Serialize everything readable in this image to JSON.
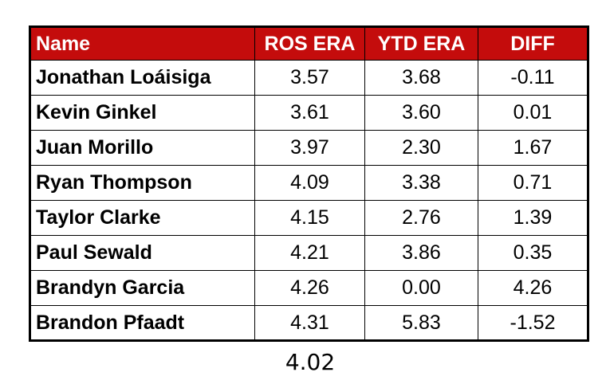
{
  "table": {
    "headers": {
      "name": "Name",
      "ros_era": "ROS ERA",
      "ytd_era": "YTD ERA",
      "diff": "DIFF"
    },
    "rows": [
      {
        "name": "Jonathan Loáisiga",
        "ros_era": "3.57",
        "ytd_era": "3.68",
        "diff": "-0.11"
      },
      {
        "name": "Kevin Ginkel",
        "ros_era": "3.61",
        "ytd_era": "3.60",
        "diff": "0.01"
      },
      {
        "name": "Juan Morillo",
        "ros_era": "3.97",
        "ytd_era": "2.30",
        "diff": "1.67"
      },
      {
        "name": "Ryan Thompson",
        "ros_era": "4.09",
        "ytd_era": "3.38",
        "diff": "0.71"
      },
      {
        "name": "Taylor Clarke",
        "ros_era": "4.15",
        "ytd_era": "2.76",
        "diff": "1.39"
      },
      {
        "name": "Paul Sewald",
        "ros_era": "4.21",
        "ytd_era": "3.86",
        "diff": "0.35"
      },
      {
        "name": "Brandyn Garcia",
        "ros_era": "4.26",
        "ytd_era": "0.00",
        "diff": "4.26"
      },
      {
        "name": "Brandon Pfaadt",
        "ros_era": "4.31",
        "ytd_era": "5.83",
        "diff": "-1.52"
      }
    ],
    "colors": {
      "header_background": "#c40c0c",
      "header_text": "#ffffff",
      "border": "#000000"
    }
  },
  "summary_value": "4.02"
}
